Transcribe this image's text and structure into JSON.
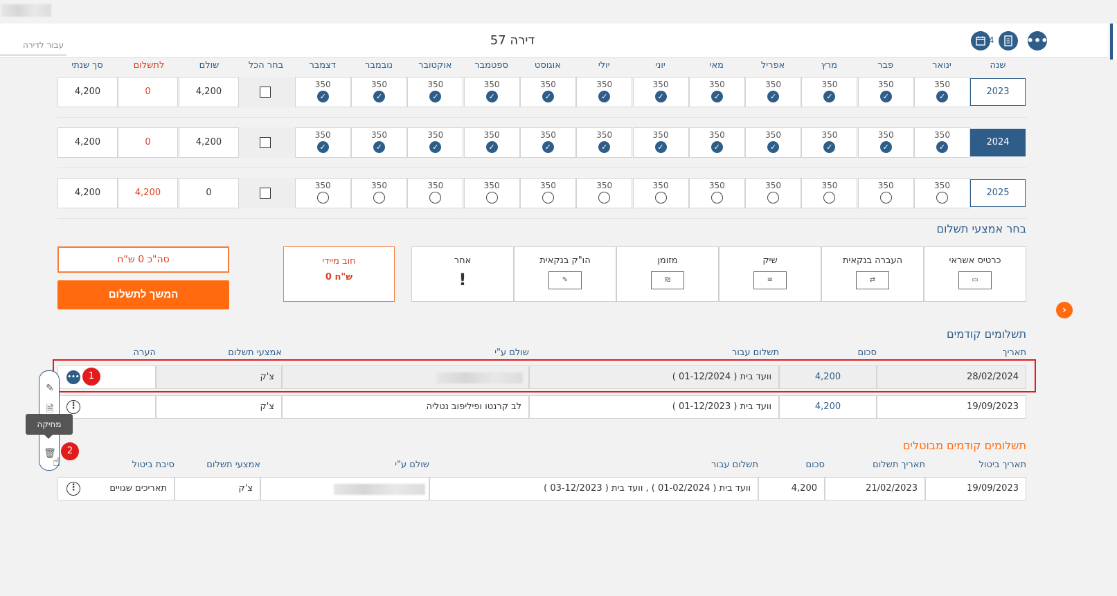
{
  "header": {
    "title": "דירה 57",
    "for_apartment_placeholder": "עבור לדירה",
    "year": "2024",
    "calendar_icon": "calendar-icon",
    "document_icon": "document-icon",
    "more_icon": "more-dots-icon"
  },
  "grid": {
    "year_header": "שנה",
    "months": [
      "ינואר",
      "פבר",
      "מרץ",
      "אפריל",
      "מאי",
      "יוני",
      "יולי",
      "אוגוסט",
      "ספטמבר",
      "אוקטובר",
      "נובמבר",
      "דצמבר"
    ],
    "select_all": "בחר הכל",
    "paid_header": "שולם",
    "to_pay_header": "לתשלום",
    "annual_total_header": "סך שנתי",
    "rows": [
      {
        "year": "2023",
        "amount": "350",
        "paid": "4,200",
        "to_pay": "0",
        "total": "4,200",
        "status": "paid"
      },
      {
        "year": "2024",
        "amount": "350",
        "paid": "4,200",
        "to_pay": "0",
        "total": "4,200",
        "status": "paid"
      },
      {
        "year": "2025",
        "amount": "350",
        "paid": "0",
        "to_pay": "4,200",
        "total": "4,200",
        "status": "unpaid"
      }
    ]
  },
  "payment_methods": {
    "title": "בחר אמצעי תשלום",
    "items": [
      {
        "label": "כרטיס אשראי",
        "icon": "credit-card-icon"
      },
      {
        "label": "העברה בנקאית",
        "icon": "bank-transfer-icon"
      },
      {
        "label": "שיק",
        "icon": "check-icon"
      },
      {
        "label": "מזומן",
        "icon": "cash-icon"
      },
      {
        "label": "הו\"ק בנקאית",
        "icon": "standing-order-icon"
      },
      {
        "label": "אחר",
        "icon": "exclamation-icon"
      }
    ],
    "cash_symbol": "₪",
    "debt_label": "חוב מיידי",
    "debt_value": "0 ש\"ח",
    "total_label": "סה\"כ 0 ש\"ח",
    "continue_label": "המשך לתשלום"
  },
  "previous_payments": {
    "title": "תשלומים קודמים",
    "headers": {
      "date": "תאריך",
      "amount": "סכום",
      "paid_for": "תשלום עבור",
      "paid_by": "שולם ע\"י",
      "method": "אמצעי תשלום",
      "note": "הערה"
    },
    "rows": [
      {
        "date": "28/02/2024",
        "amount": "4,200",
        "paid_for": "וועד בית ( 01-12/2024 )",
        "paid_by": "",
        "method": "צ'ק",
        "note": ""
      },
      {
        "date": "19/09/2023",
        "amount": "4,200",
        "paid_for": "וועד בית ( 01-12/2023 )",
        "paid_by": "לב קרנטו ופיליפוב נטליה",
        "method": "צ'ק",
        "note": ""
      }
    ]
  },
  "cancelled_payments": {
    "title": "תשלומים קודמים מבוטלים",
    "headers": {
      "cancel_date": "תאריך ביטול",
      "payment_date": "תאריך תשלום",
      "amount": "סכום",
      "paid_for": "תשלום עבור",
      "paid_by": "שולם ע\"י",
      "method": "אמצעי תשלום",
      "reason": "סיבת ביטול"
    },
    "rows": [
      {
        "cancel_date": "19/09/2023",
        "payment_date": "21/02/2023",
        "amount": "4,200",
        "paid_for": "וועד בית ( 01-02/2024 ) , וועד בית ( 03-12/2023 )",
        "paid_by": "",
        "method": "צ'ק",
        "reason": "תאריכים שגויים"
      }
    ]
  },
  "annotations": {
    "badge1": "1",
    "badge2": "2",
    "tooltip": "מחיקה"
  },
  "colors": {
    "primary": "#2f5d8a",
    "accent": "#ff6b0e",
    "danger": "#e31b1b"
  }
}
